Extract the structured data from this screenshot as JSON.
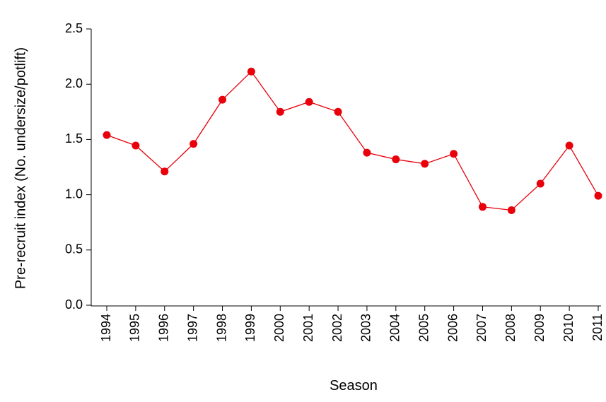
{
  "chart_data": {
    "type": "line",
    "x_label": "Season",
    "y_label": "Pre-recruit index (No. undersize/potlift)",
    "categories": [
      "1994",
      "1995",
      "1996",
      "1997",
      "1998",
      "1999",
      "2000",
      "2001",
      "2002",
      "2003",
      "2004",
      "2005",
      "2006",
      "2007",
      "2008",
      "2009",
      "2010",
      "2011"
    ],
    "values": [
      1.54,
      1.445,
      1.21,
      1.46,
      1.86,
      2.115,
      1.75,
      1.84,
      1.75,
      1.38,
      1.32,
      1.28,
      1.37,
      0.89,
      0.86,
      1.1,
      1.445,
      0.99
    ],
    "color": "#e8000b",
    "ylim": [
      0,
      2.5
    ],
    "yticks": [
      {
        "value": 0,
        "label": "0.0"
      },
      0.5,
      {
        "value": 1,
        "label": "1.0"
      },
      1.5,
      {
        "value": 2,
        "label": "2.0"
      },
      2.5
    ]
  }
}
